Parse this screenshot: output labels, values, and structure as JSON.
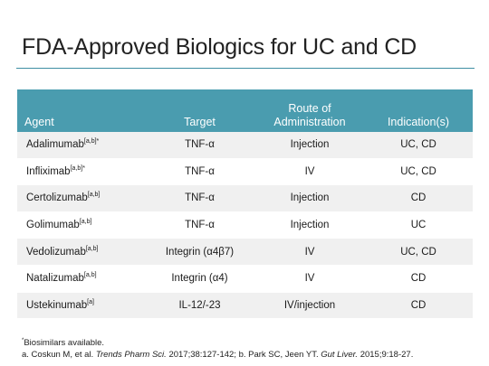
{
  "slide": {
    "title": "FDA-Approved Biologics for UC and CD"
  },
  "table": {
    "headers": [
      "Agent",
      "Target",
      "Route of Administration",
      "Indication(s)"
    ],
    "rows": [
      {
        "agent": "Adalimumab",
        "agent_sup": "[a,b]*",
        "target": "TNF-α",
        "route": "Injection",
        "indication": "UC, CD"
      },
      {
        "agent": "Infliximab",
        "agent_sup": "[a,b]*",
        "target": "TNF-α",
        "route": "IV",
        "indication": "UC, CD"
      },
      {
        "agent": "Certolizumab",
        "agent_sup": "[a,b]",
        "target": "TNF-α",
        "route": "Injection",
        "indication": "CD"
      },
      {
        "agent": "Golimumab",
        "agent_sup": "[a,b]",
        "target": "TNF-α",
        "route": "Injection",
        "indication": "UC"
      },
      {
        "agent": "Vedolizumab",
        "agent_sup": "[a,b]",
        "target": "Integrin (α4β7)",
        "route": "IV",
        "indication": "UC, CD"
      },
      {
        "agent": "Natalizumab",
        "agent_sup": "[a,b]",
        "target": "Integrin (α4)",
        "route": "IV",
        "indication": "CD"
      },
      {
        "agent": "Ustekinumab",
        "agent_sup": "[a]",
        "target": "IL-12/-23",
        "route": "IV/injection",
        "indication": "CD"
      }
    ]
  },
  "footnotes": {
    "biosimilars_mark": "*",
    "biosimilars_text": "Biosimilars available.",
    "ref_a_prefix": "a. Coskun M, et al. ",
    "ref_a_journal": "Trends Pharm Sci.",
    "ref_a_suffix": " 2017;38:127-142; b. Park SC, Jeen YT. ",
    "ref_b_journal": "Gut Liver.",
    "ref_b_suffix": " 2015;9:18-27."
  },
  "colors": {
    "header_bg": "#4a9caf",
    "rule": "#3f8fa3",
    "row_shade": "#f0f0f0"
  }
}
